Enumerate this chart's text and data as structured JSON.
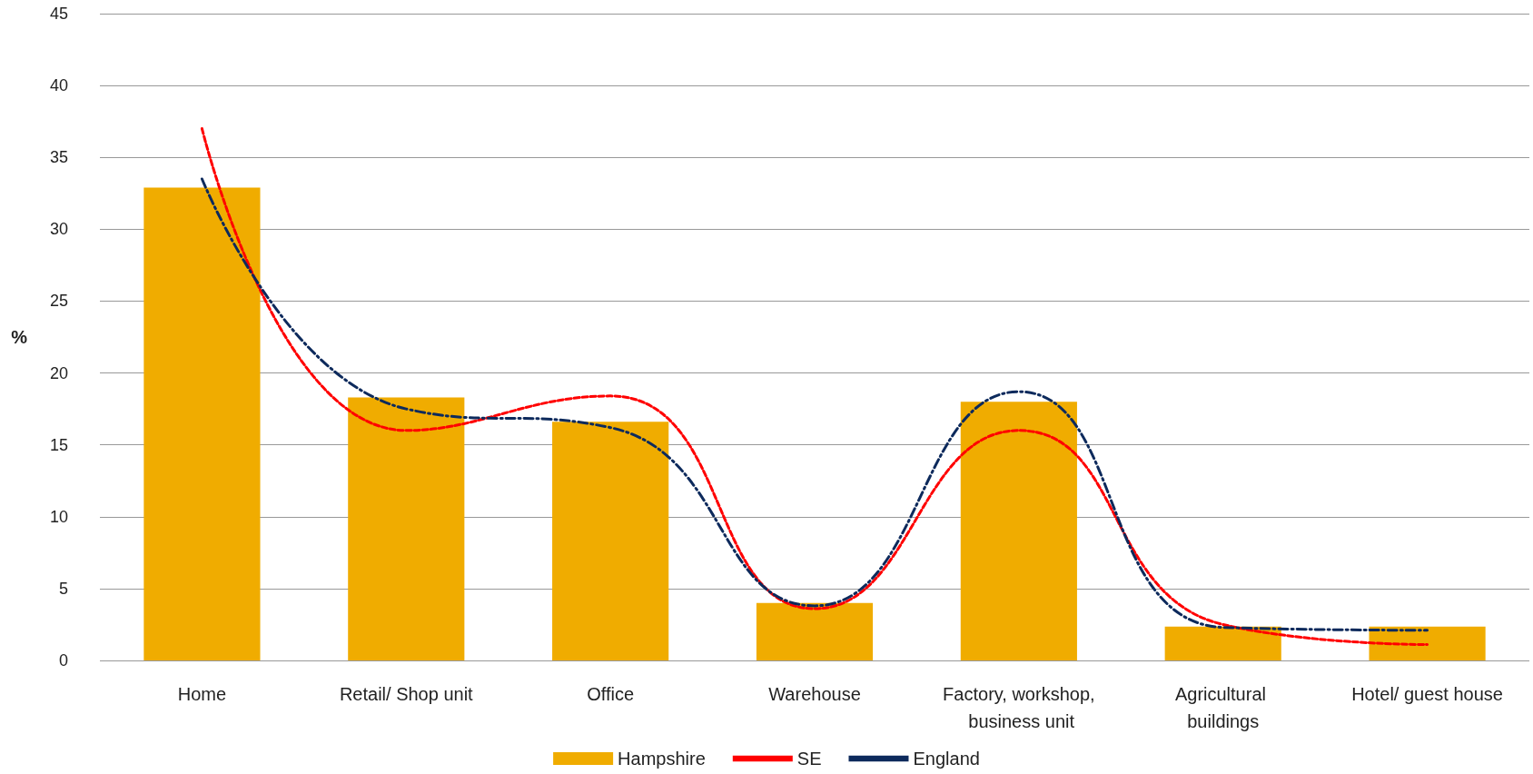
{
  "chart_data": {
    "type": "bar",
    "ylabel": "%",
    "categories": [
      "Home",
      "Retail/ Shop unit",
      "Office",
      "Warehouse",
      "Factory, workshop, business unit",
      "Agricultural buildings",
      "Hotel/ guest house"
    ],
    "series": [
      {
        "name": "Hampshire",
        "color": "#f0ac00",
        "values": [
          32.9,
          18.3,
          16.6,
          4.0,
          18.0,
          2.35,
          2.35
        ]
      },
      {
        "name": "SE",
        "type": "line",
        "color": "#ff0000",
        "line_style": "dashed",
        "values": [
          37,
          16,
          18.4,
          3.6,
          16,
          2.5,
          1.1
        ]
      },
      {
        "name": "England",
        "type": "line",
        "color": "#0d2a5c",
        "line_style": "dashdot",
        "values": [
          33.5,
          17.5,
          16.2,
          3.8,
          18.7,
          2.3,
          2.1
        ]
      }
    ],
    "ylim": [
      0,
      45
    ],
    "yticks": [
      0,
      5,
      10,
      15,
      20,
      25,
      30,
      35,
      40,
      45
    ],
    "grid": "y",
    "legend": "bottom",
    "marker": "none"
  }
}
